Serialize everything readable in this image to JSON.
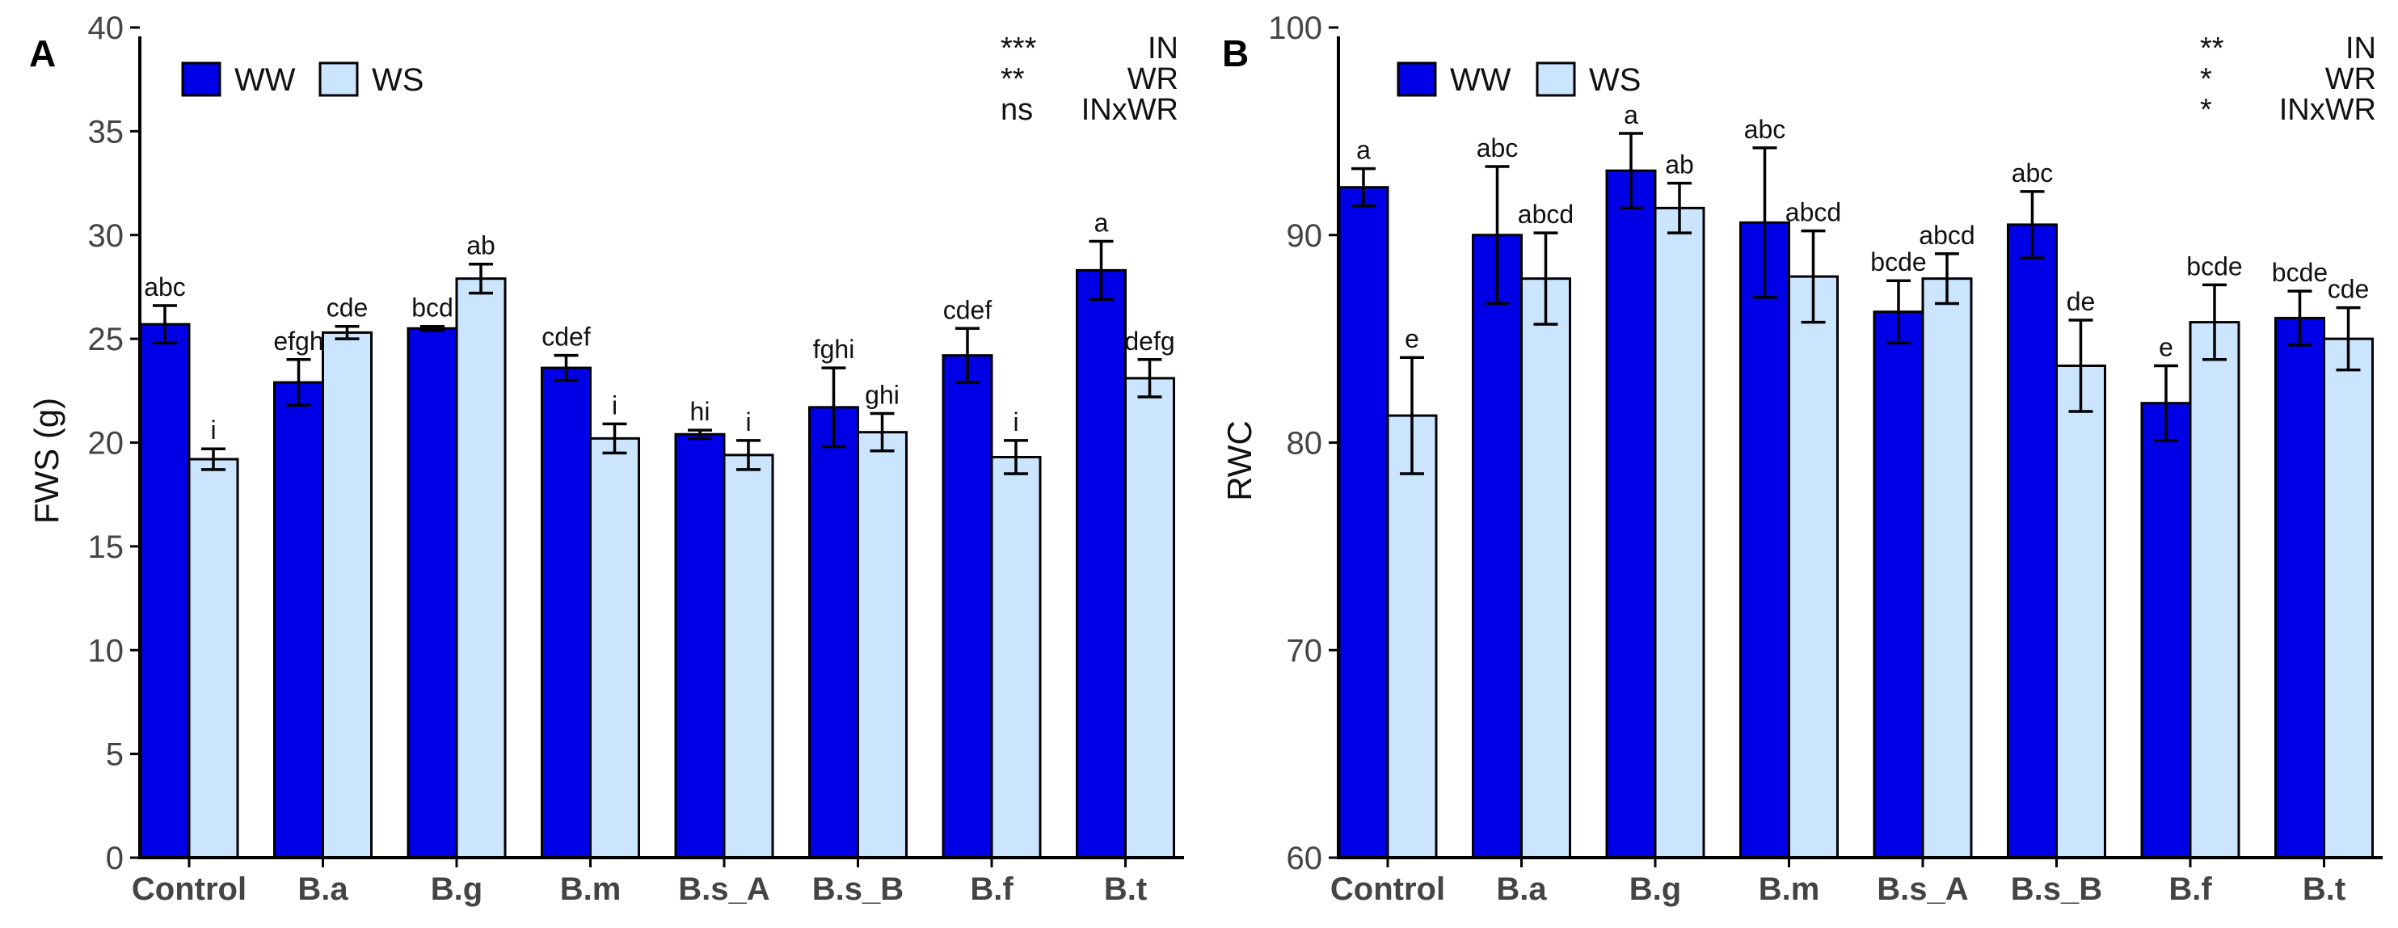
{
  "chart_data": [
    {
      "panel": "A",
      "type": "bar",
      "ylabel": "FWS (g)",
      "xlabel": "",
      "ylim": [
        0,
        40
      ],
      "yticks": [
        0,
        5,
        10,
        15,
        20,
        25,
        30,
        35,
        40
      ],
      "categories": [
        "Control",
        "B.a",
        "B.g",
        "B.m",
        "B.s_A",
        "B.s_B",
        "B.f",
        "B.t"
      ],
      "series": [
        {
          "name": "WW",
          "color": "#0000E6",
          "values": [
            25.7,
            22.9,
            25.5,
            23.6,
            20.4,
            21.7,
            24.2,
            28.3
          ],
          "errors": [
            0.9,
            1.1,
            0.1,
            0.6,
            0.2,
            1.9,
            1.3,
            1.4
          ],
          "letters": [
            "abc",
            "efgh",
            "bcd",
            "cdef",
            "hi",
            "fghi",
            "cdef",
            "a"
          ]
        },
        {
          "name": "WS",
          "color": "#CCE5FF",
          "values": [
            19.2,
            25.3,
            27.9,
            20.2,
            19.4,
            20.5,
            19.3,
            23.1
          ],
          "errors": [
            0.5,
            0.3,
            0.7,
            0.7,
            0.7,
            0.9,
            0.8,
            0.9
          ],
          "letters": [
            "i",
            "cde",
            "ab",
            "i",
            "i",
            "ghi",
            "i",
            "defg"
          ]
        }
      ],
      "legend": [
        "WW",
        "WS"
      ],
      "stats": [
        {
          "sig": "***",
          "term": "IN"
        },
        {
          "sig": "**",
          "term": "WR"
        },
        {
          "sig": "ns",
          "term": "INxWR"
        }
      ]
    },
    {
      "panel": "B",
      "type": "bar",
      "ylabel": "RWC",
      "xlabel": "",
      "ylim": [
        60,
        100
      ],
      "yticks": [
        60,
        70,
        80,
        90,
        100
      ],
      "categories": [
        "Control",
        "B.a",
        "B.g",
        "B.m",
        "B.s_A",
        "B.s_B",
        "B.f",
        "B.t"
      ],
      "series": [
        {
          "name": "WW",
          "color": "#0000E6",
          "values": [
            92.3,
            90.0,
            93.1,
            90.6,
            86.3,
            90.5,
            81.9,
            86.0
          ],
          "errors": [
            0.9,
            3.3,
            1.8,
            3.6,
            1.5,
            1.6,
            1.8,
            1.3
          ],
          "letters": [
            "a",
            "abc",
            "a",
            "abc",
            "bcde",
            "abc",
            "e",
            "bcde"
          ]
        },
        {
          "name": "WS",
          "color": "#CCE5FF",
          "values": [
            81.3,
            87.9,
            91.3,
            88.0,
            87.9,
            83.7,
            85.8,
            85.0
          ],
          "errors": [
            2.8,
            2.2,
            1.2,
            2.2,
            1.2,
            2.2,
            1.8,
            1.5
          ],
          "letters": [
            "e",
            "abcd",
            "ab",
            "abcd",
            "abcd",
            "de",
            "bcde",
            "cde"
          ]
        }
      ],
      "legend": [
        "WW",
        "WS"
      ],
      "stats": [
        {
          "sig": "**",
          "term": "IN"
        },
        {
          "sig": "*",
          "term": "WR"
        },
        {
          "sig": "*",
          "term": "INxWR"
        }
      ]
    }
  ]
}
